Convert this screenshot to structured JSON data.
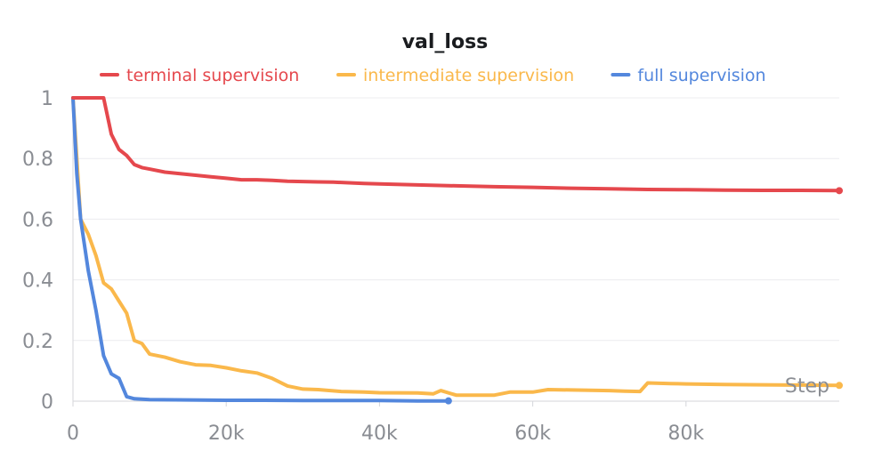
{
  "chart_data": {
    "type": "line",
    "title": "val_loss",
    "xlabel": "Step",
    "ylabel": "",
    "xlim": [
      0,
      100000
    ],
    "ylim": [
      0,
      1
    ],
    "x_ticks": [
      0,
      20000,
      40000,
      60000,
      80000
    ],
    "x_tick_labels": [
      "0",
      "20k",
      "40k",
      "60k",
      "80k"
    ],
    "y_ticks": [
      0,
      0.2,
      0.4,
      0.6,
      0.8,
      1
    ],
    "y_tick_labels": [
      "0",
      "0.2",
      "0.4",
      "0.6",
      "0.8",
      "1"
    ],
    "grid": true,
    "legend_position": "top-center",
    "series": [
      {
        "name": "terminal supervision",
        "color": "#e5484d",
        "end_marker": true,
        "x": [
          0,
          2000,
          4000,
          5000,
          6000,
          7000,
          8000,
          9000,
          10000,
          12000,
          14000,
          16000,
          18000,
          20000,
          22000,
          24000,
          26000,
          28000,
          30000,
          32000,
          34000,
          36000,
          38000,
          40000,
          45000,
          50000,
          55000,
          60000,
          65000,
          70000,
          75000,
          80000,
          85000,
          90000,
          95000,
          100000
        ],
        "y": [
          1.0,
          1.0,
          1.0,
          0.88,
          0.83,
          0.81,
          0.78,
          0.77,
          0.765,
          0.755,
          0.75,
          0.745,
          0.74,
          0.735,
          0.73,
          0.73,
          0.728,
          0.725,
          0.724,
          0.723,
          0.722,
          0.72,
          0.718,
          0.716,
          0.713,
          0.71,
          0.707,
          0.705,
          0.702,
          0.7,
          0.698,
          0.697,
          0.696,
          0.695,
          0.695,
          0.694
        ]
      },
      {
        "name": "intermediate supervision",
        "color": "#fab84b",
        "end_marker": true,
        "x": [
          0,
          1000,
          2000,
          3000,
          4000,
          5000,
          6000,
          7000,
          8000,
          9000,
          10000,
          12000,
          14000,
          16000,
          18000,
          20000,
          22000,
          24000,
          26000,
          28000,
          30000,
          32000,
          35000,
          38000,
          40000,
          45000,
          47000,
          48000,
          50000,
          55000,
          57000,
          60000,
          62000,
          65000,
          70000,
          72000,
          74000,
          75000,
          78000,
          80000,
          85000,
          90000,
          95000,
          100000
        ],
        "y": [
          1.0,
          0.6,
          0.55,
          0.48,
          0.39,
          0.37,
          0.33,
          0.29,
          0.2,
          0.19,
          0.155,
          0.145,
          0.13,
          0.12,
          0.118,
          0.11,
          0.1,
          0.093,
          0.075,
          0.05,
          0.04,
          0.038,
          0.032,
          0.03,
          0.028,
          0.027,
          0.024,
          0.035,
          0.02,
          0.02,
          0.03,
          0.03,
          0.038,
          0.037,
          0.035,
          0.033,
          0.032,
          0.06,
          0.058,
          0.057,
          0.055,
          0.054,
          0.053,
          0.052
        ]
      },
      {
        "name": "full supervision",
        "color": "#5387dd",
        "end_marker": true,
        "x": [
          0,
          500,
          1000,
          2000,
          3000,
          4000,
          5000,
          6000,
          7000,
          8000,
          10000,
          15000,
          20000,
          25000,
          30000,
          35000,
          40000,
          45000,
          49000
        ],
        "y": [
          1.0,
          0.75,
          0.6,
          0.43,
          0.3,
          0.15,
          0.09,
          0.075,
          0.015,
          0.008,
          0.005,
          0.004,
          0.003,
          0.003,
          0.002,
          0.002,
          0.002,
          0.001,
          0.001
        ]
      }
    ]
  }
}
